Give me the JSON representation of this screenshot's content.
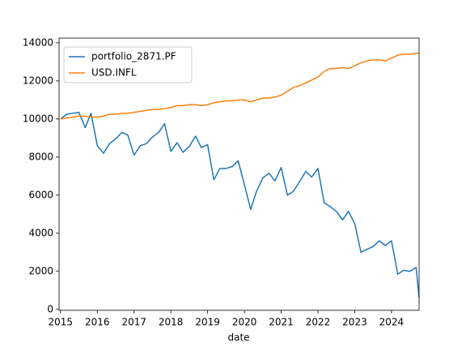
{
  "chart_data": {
    "type": "line",
    "x_label": "date",
    "x": [
      2015.0,
      2015.17,
      2015.33,
      2015.5,
      2015.67,
      2015.83,
      2016.0,
      2016.17,
      2016.33,
      2016.5,
      2016.67,
      2016.83,
      2017.0,
      2017.17,
      2017.33,
      2017.5,
      2017.67,
      2017.83,
      2018.0,
      2018.17,
      2018.33,
      2018.5,
      2018.67,
      2018.83,
      2019.0,
      2019.17,
      2019.33,
      2019.5,
      2019.67,
      2019.83,
      2020.0,
      2020.17,
      2020.33,
      2020.5,
      2020.67,
      2020.83,
      2021.0,
      2021.17,
      2021.33,
      2021.5,
      2021.67,
      2021.83,
      2022.0,
      2022.17,
      2022.33,
      2022.5,
      2022.67,
      2022.83,
      2023.0,
      2023.17,
      2023.33,
      2023.5,
      2023.67,
      2023.83,
      2024.0,
      2024.17,
      2024.33,
      2024.5,
      2024.67,
      2024.75
    ],
    "series": [
      {
        "name": "portfolio_2871.PF",
        "color": "#1f77b4",
        "values": [
          10000,
          10250,
          10300,
          10350,
          9550,
          10300,
          8600,
          8200,
          8700,
          8950,
          9300,
          9150,
          8100,
          8600,
          8700,
          9050,
          9300,
          9750,
          8300,
          8750,
          8250,
          8550,
          9100,
          8500,
          8650,
          6800,
          7400,
          7400,
          7500,
          7800,
          6550,
          5250,
          6200,
          6900,
          7150,
          6750,
          7450,
          6000,
          6200,
          6700,
          7250,
          6950,
          7400,
          5600,
          5400,
          5150,
          4700,
          5150,
          4500,
          3000,
          3150,
          3300,
          3600,
          3350,
          3600,
          1850,
          2050,
          2000,
          2200,
          600
        ]
      },
      {
        "name": "USD.INFL",
        "color": "#ff7f0e",
        "values": [
          10000,
          10050,
          10100,
          10150,
          10150,
          10100,
          10100,
          10150,
          10250,
          10250,
          10300,
          10300,
          10350,
          10400,
          10450,
          10500,
          10500,
          10550,
          10600,
          10700,
          10700,
          10750,
          10750,
          10700,
          10750,
          10850,
          10900,
          10950,
          10950,
          11000,
          11000,
          10900,
          11000,
          11100,
          11100,
          11150,
          11250,
          11450,
          11650,
          11750,
          11900,
          12050,
          12200,
          12500,
          12650,
          12650,
          12700,
          12650,
          12800,
          12950,
          13050,
          13100,
          13100,
          13050,
          13200,
          13350,
          13400,
          13400,
          13450,
          13450
        ]
      }
    ],
    "xlim": [
      2014.96,
      2024.75
    ],
    "xticks": [
      2015,
      2016,
      2017,
      2018,
      2019,
      2020,
      2021,
      2022,
      2023,
      2024
    ],
    "ylim": [
      -50,
      14250
    ],
    "yticks": [
      0,
      2000,
      4000,
      6000,
      8000,
      10000,
      12000,
      14000
    ],
    "grid": false,
    "legend": "upper left"
  }
}
